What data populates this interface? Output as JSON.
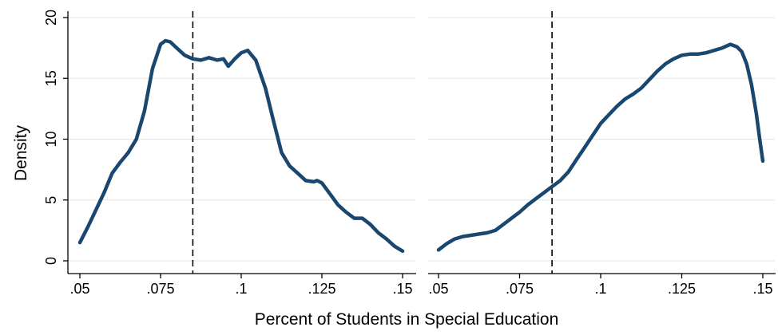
{
  "figure": {
    "ylabel": "Density",
    "xlabel": "Percent of Students in Special Education"
  },
  "chart_data": [
    {
      "type": "line",
      "panel": "left",
      "xlim": [
        0.05,
        0.15
      ],
      "ylim": [
        0,
        20
      ],
      "xticks": [
        0.05,
        0.075,
        0.1,
        0.125,
        0.15
      ],
      "xtick_labels": [
        ".05",
        ".075",
        ".1",
        ".125",
        ".15"
      ],
      "yticks": [
        0,
        5,
        10,
        15,
        20
      ],
      "ytick_labels": [
        "0",
        "5",
        "10",
        "15",
        "20"
      ],
      "grid": "horizontal",
      "color": "#1a476f",
      "reference_line": {
        "x": 0.085,
        "style": "dashed"
      },
      "x": [
        0.05,
        0.0525,
        0.055,
        0.0575,
        0.06,
        0.0625,
        0.065,
        0.0675,
        0.07,
        0.0725,
        0.075,
        0.0765,
        0.078,
        0.08,
        0.0825,
        0.085,
        0.0875,
        0.09,
        0.0925,
        0.0945,
        0.096,
        0.098,
        0.1,
        0.102,
        0.1045,
        0.1075,
        0.11,
        0.1125,
        0.115,
        0.1175,
        0.12,
        0.1225,
        0.1235,
        0.125,
        0.1275,
        0.13,
        0.1325,
        0.135,
        0.1375,
        0.14,
        0.1425,
        0.145,
        0.1475,
        0.15
      ],
      "y": [
        1.5,
        2.8,
        4.2,
        5.6,
        7.2,
        8.1,
        8.9,
        10.0,
        12.3,
        15.8,
        17.8,
        18.1,
        18.0,
        17.5,
        16.9,
        16.6,
        16.5,
        16.7,
        16.5,
        16.6,
        16.0,
        16.6,
        17.1,
        17.3,
        16.5,
        14.2,
        11.5,
        8.9,
        7.8,
        7.2,
        6.6,
        6.5,
        6.6,
        6.4,
        5.5,
        4.6,
        4.0,
        3.5,
        3.5,
        3.0,
        2.3,
        1.8,
        1.2,
        0.8
      ]
    },
    {
      "type": "line",
      "panel": "right",
      "xlim": [
        0.05,
        0.15
      ],
      "ylim": [
        0,
        20
      ],
      "xticks": [
        0.05,
        0.075,
        0.1,
        0.125,
        0.15
      ],
      "xtick_labels": [
        ".05",
        ".075",
        ".1",
        ".125",
        ".15"
      ],
      "grid": "horizontal",
      "color": "#1a476f",
      "reference_line": {
        "x": 0.085,
        "style": "dashed"
      },
      "x": [
        0.05,
        0.0525,
        0.055,
        0.0575,
        0.06,
        0.0625,
        0.065,
        0.0675,
        0.07,
        0.0725,
        0.075,
        0.0775,
        0.08,
        0.0825,
        0.085,
        0.0875,
        0.09,
        0.0925,
        0.095,
        0.0975,
        0.1,
        0.1025,
        0.105,
        0.1075,
        0.11,
        0.1125,
        0.115,
        0.1175,
        0.12,
        0.1225,
        0.125,
        0.1275,
        0.13,
        0.1325,
        0.135,
        0.1375,
        0.14,
        0.142,
        0.1435,
        0.145,
        0.1465,
        0.148,
        0.149,
        0.15
      ],
      "y": [
        0.9,
        1.4,
        1.8,
        2.0,
        2.1,
        2.2,
        2.3,
        2.5,
        3.0,
        3.5,
        4.0,
        4.6,
        5.1,
        5.6,
        6.1,
        6.6,
        7.3,
        8.3,
        9.3,
        10.3,
        11.3,
        12.0,
        12.7,
        13.3,
        13.7,
        14.2,
        14.9,
        15.6,
        16.2,
        16.6,
        16.9,
        17.0,
        17.0,
        17.1,
        17.3,
        17.5,
        17.8,
        17.6,
        17.2,
        16.2,
        14.5,
        12.1,
        10.1,
        8.2
      ]
    }
  ]
}
